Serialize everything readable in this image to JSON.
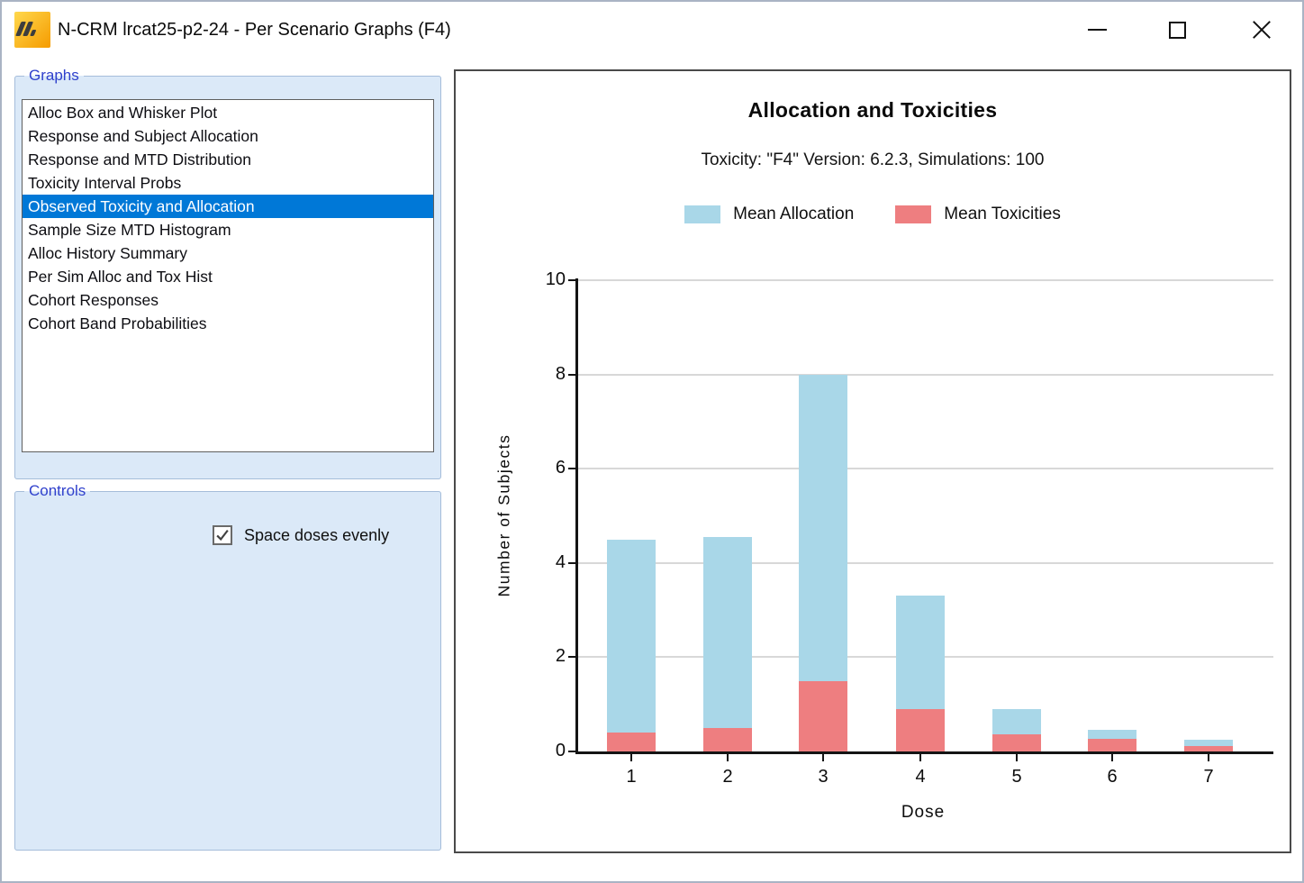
{
  "window": {
    "title": "N-CRM lrcat25-p2-24 - Per Scenario Graphs (F4)"
  },
  "ui_colors": {
    "selection_highlight": "#0078d7",
    "selection_text": "#ffffff",
    "groupbox_fill": "#dbe9f8",
    "groupbox_border": "#a5bdda",
    "groupbox_label_text": "#2f40cc",
    "app_icon_gold": "#ffcf33",
    "app_icon_orange": "#f59b00"
  },
  "sidebar": {
    "graphs": {
      "label": "Graphs",
      "selected_index": 4,
      "items": [
        "Alloc Box and Whisker Plot",
        "Response and Subject Allocation",
        "Response and MTD Distribution",
        "Toxicity Interval Probs",
        "Observed Toxicity and Allocation",
        "Sample Size MTD Histogram",
        "Alloc History Summary",
        "Per Sim Alloc and Tox Hist",
        "Cohort Responses",
        "Cohort Band Probabilities"
      ]
    },
    "controls": {
      "label": "Controls",
      "space_doses_checkbox": {
        "label": "Space doses evenly",
        "checked": true
      }
    }
  },
  "chart_data": {
    "type": "bar",
    "title": "Allocation and Toxicities",
    "subtitle": "Toxicity: \"F4\" Version: 6.2.3, Simulations: 100",
    "categories": [
      "1",
      "2",
      "3",
      "4",
      "5",
      "6",
      "7"
    ],
    "series": [
      {
        "name": "Mean Allocation",
        "color": "#a9d7e8",
        "values": [
          4.5,
          4.55,
          8,
          3.3,
          0.9,
          0.45,
          0.25
        ],
        "note": "values are total bar heights"
      },
      {
        "name": "Mean Toxicities",
        "color": "#ee7e80",
        "values": [
          0.4,
          0.5,
          1.5,
          0.9,
          0.37,
          0.26,
          0.11
        ],
        "note": "drawn overlaid from baseline in front of allocation bars"
      }
    ],
    "xlabel": "Dose",
    "ylabel": "Number of Subjects",
    "ylim": [
      0,
      10
    ],
    "yticks": [
      0,
      2,
      4,
      6,
      8,
      10
    ],
    "grid": true,
    "legend_position": "top"
  }
}
